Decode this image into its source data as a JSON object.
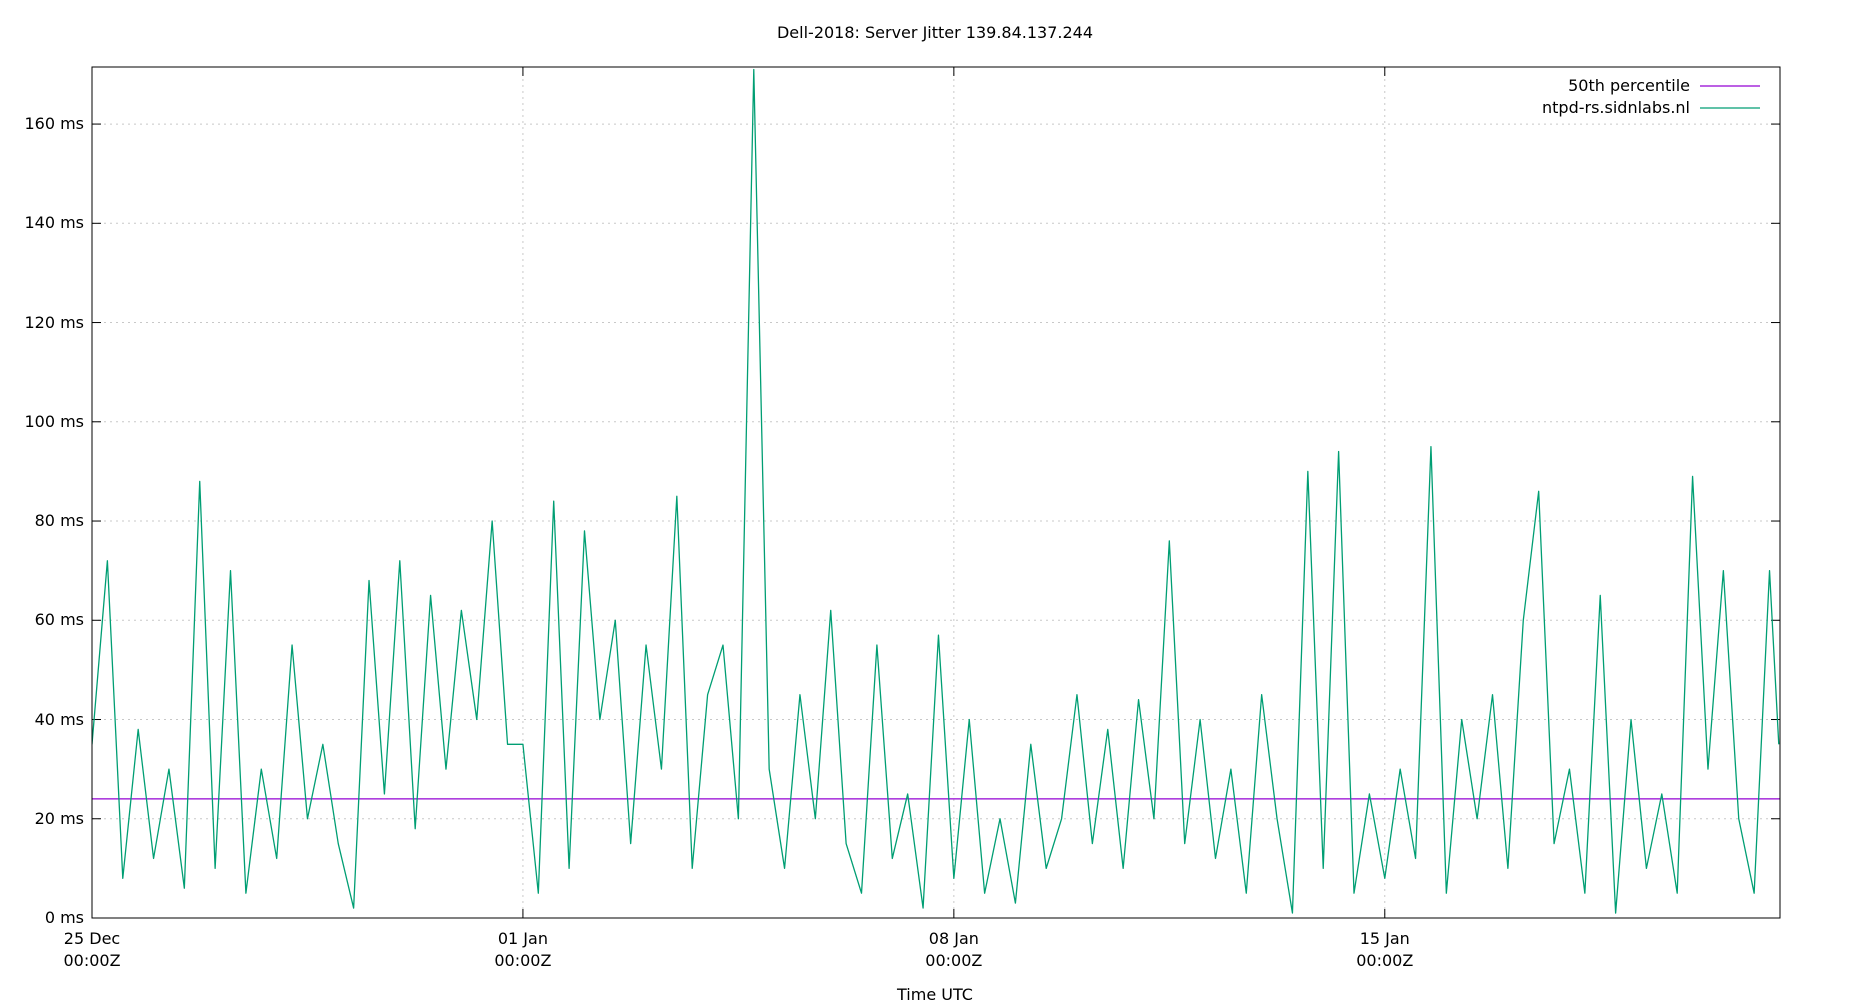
{
  "chart_data": {
    "type": "line",
    "title": "Dell-2018: Server Jitter 139.84.137.244",
    "xlabel": "Time UTC",
    "x": [
      0,
      0.25,
      0.5,
      0.75,
      1,
      1.25,
      1.5,
      1.75,
      2,
      2.25,
      2.5,
      2.75,
      3,
      3.25,
      3.5,
      3.75,
      4,
      4.25,
      4.5,
      4.75,
      5,
      5.25,
      5.5,
      5.75,
      6,
      6.25,
      6.5,
      6.75,
      7,
      7.25,
      7.5,
      7.75,
      8,
      8.25,
      8.5,
      8.75,
      9,
      9.25,
      9.5,
      9.75,
      10,
      10.25,
      10.5,
      10.75,
      11,
      11.25,
      11.5,
      11.75,
      12,
      12.25,
      12.5,
      12.75,
      13,
      13.25,
      13.5,
      13.75,
      14,
      14.25,
      14.5,
      14.75,
      15,
      15.25,
      15.5,
      15.75,
      16,
      16.25,
      16.5,
      16.75,
      17,
      17.25,
      17.5,
      17.75,
      18,
      18.25,
      18.5,
      18.75,
      19,
      19.25,
      19.5,
      19.75,
      20,
      20.25,
      20.5,
      20.75,
      21,
      21.25,
      21.5,
      21.75,
      22,
      22.25,
      22.5,
      22.75,
      23,
      23.25,
      23.5,
      23.75,
      24,
      24.25,
      24.5,
      24.75,
      25,
      25.25,
      25.5,
      25.75,
      26,
      26.25,
      26.5,
      26.75,
      27,
      27.25,
      27.4
    ],
    "series": [
      {
        "name": "ntpd-rs.sidnlabs.nl",
        "color": "#009e73",
        "values": [
          35,
          72,
          8,
          38,
          12,
          30,
          6,
          88,
          10,
          70,
          5,
          30,
          12,
          55,
          20,
          35,
          15,
          2,
          68,
          25,
          72,
          18,
          65,
          30,
          62,
          40,
          80,
          35,
          35,
          5,
          84,
          10,
          78,
          40,
          60,
          15,
          55,
          30,
          85,
          10,
          45,
          55,
          20,
          171,
          30,
          10,
          45,
          20,
          62,
          15,
          5,
          55,
          12,
          25,
          2,
          57,
          8,
          40,
          5,
          20,
          3,
          35,
          10,
          20,
          45,
          15,
          38,
          10,
          44,
          20,
          76,
          15,
          40,
          12,
          30,
          5,
          45,
          20,
          1,
          90,
          10,
          94,
          5,
          25,
          8,
          30,
          12,
          95,
          5,
          40,
          20,
          45,
          10,
          60,
          86,
          15,
          30,
          5,
          65,
          1,
          40,
          10,
          25,
          5,
          89,
          30,
          70,
          20,
          5,
          70,
          35
        ]
      }
    ],
    "lines": [
      {
        "name": "50th percentile",
        "color": "#9400d3",
        "value": 24
      }
    ],
    "xlim": [
      0,
      27.42
    ],
    "xticks": [
      {
        "value": 0,
        "label": "25 Dec\n00:00Z"
      },
      {
        "value": 7,
        "label": "01 Jan\n00:00Z"
      },
      {
        "value": 14,
        "label": "08 Jan\n00:00Z"
      },
      {
        "value": 21,
        "label": "15 Jan\n00:00Z"
      }
    ],
    "ylim": [
      0,
      171.5
    ],
    "yticks": [
      {
        "value": 0,
        "label": "0 ms"
      },
      {
        "value": 20,
        "label": "20 ms"
      },
      {
        "value": 40,
        "label": "40 ms"
      },
      {
        "value": 60,
        "label": "60 ms"
      },
      {
        "value": 80,
        "label": "80 ms"
      },
      {
        "value": 100,
        "label": "100 ms"
      },
      {
        "value": 120,
        "label": "120 ms"
      },
      {
        "value": 140,
        "label": "140 ms"
      },
      {
        "value": 160,
        "label": "160 ms"
      }
    ],
    "grid": true,
    "legend": "top-right"
  }
}
